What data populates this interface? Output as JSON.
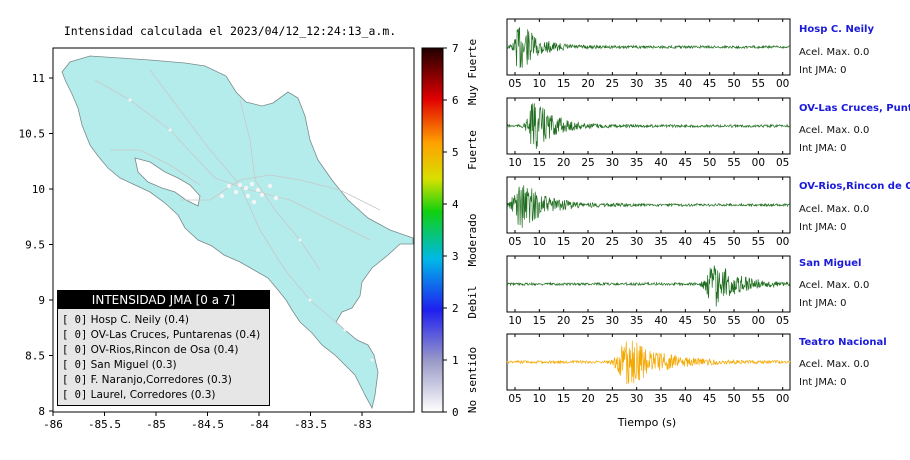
{
  "map": {
    "title": "Intensidad calculada el 2023/04/12_12:24:13_a.m.",
    "x_ticks": [
      "-86",
      "-85.5",
      "-85",
      "-84.5",
      "-84",
      "-83.5",
      "-83"
    ],
    "y_ticks": [
      "11",
      "10.5",
      "10",
      "9.5",
      "9",
      "8.5",
      "8"
    ],
    "land_color": "#b4ecec",
    "legend": {
      "title": "INTENSIDAD JMA [0 a 7]",
      "rows": [
        {
          "badge": "[ 0]",
          "label": "Hosp C. Neily (0.4)"
        },
        {
          "badge": "[ 0]",
          "label": "OV-Las Cruces, Puntarenas (0.4)"
        },
        {
          "badge": "[ 0]",
          "label": "OV-Rios,Rincon de Osa (0.4)"
        },
        {
          "badge": "[ 0]",
          "label": "San Miguel (0.3)"
        },
        {
          "badge": "[ 0]",
          "label": "F. Naranjo,Corredores (0.3)"
        },
        {
          "badge": "[ 0]",
          "label": "Laurel, Corredores (0.3)"
        }
      ]
    }
  },
  "colorbar": {
    "ticks": [
      "0",
      "1",
      "2",
      "3",
      "4",
      "5",
      "6",
      "7"
    ],
    "labels": [
      "No sentido",
      "Debil",
      "Moderado",
      "Fuerte",
      "Muy Fuerte"
    ]
  },
  "xlabel": "Tiempo (s)",
  "chart_data": [
    {
      "type": "line",
      "title": "Hosp C. Neily",
      "tick_labels": [
        "05",
        "10",
        "15",
        "20",
        "25",
        "30",
        "35",
        "40",
        "45",
        "50",
        "55",
        "00"
      ],
      "accel_max": "Acel. Max. 0.0",
      "int_jma": "Int JMA: 0",
      "color": "#1f6e1f",
      "burst_center": 0.05,
      "burst_width": 0.06
    },
    {
      "type": "line",
      "title": "OV-Las Cruces, Puntarenas",
      "tick_labels": [
        "10",
        "15",
        "20",
        "25",
        "30",
        "35",
        "40",
        "45",
        "50",
        "55",
        "00",
        "05"
      ],
      "accel_max": "Acel. Max. 0.0",
      "int_jma": "Int JMA: 0",
      "color": "#1f6e1f",
      "burst_center": 0.1,
      "burst_width": 0.07
    },
    {
      "type": "line",
      "title": "OV-Rios,Rincon de Osa",
      "tick_labels": [
        "05",
        "10",
        "15",
        "20",
        "25",
        "30",
        "35",
        "40",
        "45",
        "50",
        "55",
        "00"
      ],
      "accel_max": "Acel. Max. 0.0",
      "int_jma": "Int JMA: 0",
      "color": "#1f6e1f",
      "burst_center": 0.05,
      "burst_width": 0.08
    },
    {
      "type": "line",
      "title": "San Miguel",
      "tick_labels": [
        "10",
        "15",
        "20",
        "25",
        "30",
        "35",
        "40",
        "45",
        "50",
        "55",
        "00",
        "05"
      ],
      "accel_max": "Acel. Max. 0.0",
      "int_jma": "Int JMA: 0",
      "color": "#1f6e1f",
      "burst_center": 0.73,
      "burst_width": 0.08
    },
    {
      "type": "line",
      "title": "Teatro Nacional",
      "tick_labels": [
        "05",
        "10",
        "15",
        "20",
        "25",
        "30",
        "35",
        "40",
        "45",
        "50",
        "55",
        "00"
      ],
      "accel_max": "Acel. Max. 0.0",
      "int_jma": "Int JMA: 0",
      "color": "#f5a800",
      "burst_center": 0.43,
      "burst_width": 0.11
    }
  ]
}
